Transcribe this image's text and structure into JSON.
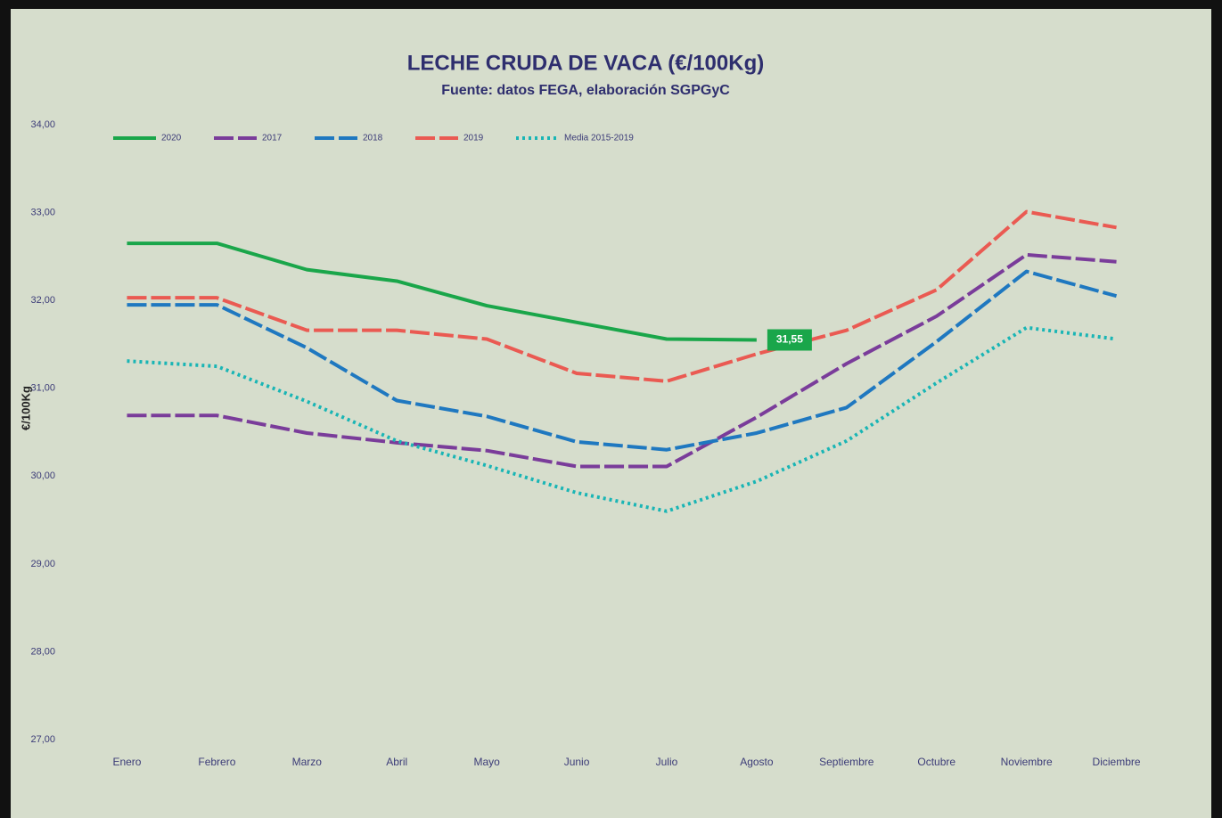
{
  "chart_data": {
    "type": "line",
    "title": "LECHE CRUDA DE VACA (€/100Kg)",
    "subtitle": "Fuente: datos FEGA, elaboración SGPGyC",
    "y_label": "€/100Kg",
    "categories": [
      "Enero",
      "Febrero",
      "Marzo",
      "Abril",
      "Mayo",
      "Junio",
      "Julio",
      "Agosto",
      "Septiembre",
      "Octubre",
      "Noviembre",
      "Diciembre"
    ],
    "series": [
      {
        "name": "2020",
        "color": "#1aa64a",
        "line_style": "solid",
        "values": [
          32.65,
          32.65,
          32.35,
          32.22,
          31.94,
          31.75,
          31.56,
          31.55,
          null,
          null,
          null,
          null
        ],
        "value_labels": [
          null,
          null,
          null,
          null,
          null,
          null,
          null,
          "31,55",
          null,
          null,
          null,
          null
        ]
      },
      {
        "name": "2017",
        "color": "#7a3c9a",
        "line_style": "dashed",
        "values": [
          30.69,
          30.69,
          30.49,
          30.38,
          30.29,
          30.11,
          30.11,
          30.67,
          31.28,
          31.82,
          32.52,
          32.44
        ]
      },
      {
        "name": "2018",
        "color": "#1f78c0",
        "line_style": "dashed",
        "values": [
          31.95,
          31.95,
          31.46,
          30.86,
          30.68,
          30.39,
          30.3,
          30.49,
          30.78,
          31.53,
          32.33,
          32.05
        ]
      },
      {
        "name": "2019",
        "color": "#ea5a52",
        "line_style": "dashed",
        "values": [
          32.03,
          32.03,
          31.66,
          31.66,
          31.56,
          31.17,
          31.08,
          31.39,
          31.66,
          32.12,
          33.01,
          32.83
        ]
      },
      {
        "name": "Media 2015-2019",
        "color": "#19b5b5",
        "line_style": "dotted",
        "values": [
          31.31,
          31.25,
          30.85,
          30.4,
          30.12,
          29.81,
          29.6,
          29.94,
          30.4,
          31.06,
          31.69,
          31.56
        ]
      }
    ],
    "ylim": [
      27,
      34
    ],
    "yticks": [
      {
        "value": 27,
        "label": "27,00"
      },
      {
        "value": 28,
        "label": "28,00"
      },
      {
        "value": 29,
        "label": "29,00"
      },
      {
        "value": 30,
        "label": "30,00"
      },
      {
        "value": 31,
        "label": "31,00"
      },
      {
        "value": 32,
        "label": "32,00"
      },
      {
        "value": 33,
        "label": "33,00"
      },
      {
        "value": 34,
        "label": "34,00"
      }
    ],
    "grid": false,
    "legend": "top-left"
  }
}
